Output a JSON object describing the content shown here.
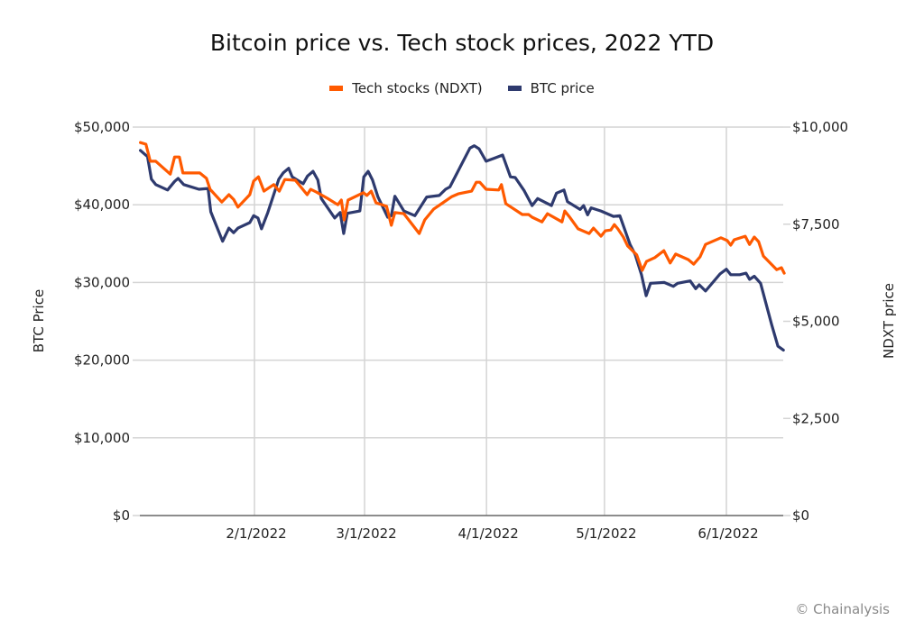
{
  "credit": "© Chainalysis",
  "colors": {
    "tech": "#FF5A00",
    "btc": "#2E3A6E",
    "grid": "#D4D4D4",
    "axis": "#666666"
  },
  "chart_data": {
    "type": "line",
    "title": "Bitcoin price vs. Tech stock prices, 2022 YTD",
    "xlabel": "",
    "ylabel": "BTC Price",
    "y2label": "NDXT price",
    "legend": {
      "placement": "top-center",
      "entries": [
        "Tech stocks (NDXT)",
        "BTC price"
      ]
    },
    "x_ticks": [
      "2/1/2022",
      "3/1/2022",
      "4/1/2022",
      "5/1/2022",
      "6/1/2022"
    ],
    "x_tick_days": [
      31,
      59,
      90,
      120,
      151
    ],
    "x_range_days": [
      2,
      165.5
    ],
    "y_ticks": [
      "$0",
      "$10,000",
      "$20,000",
      "$30,000",
      "$40,000",
      "$50,000"
    ],
    "ylim": [
      0,
      50000
    ],
    "y2_ticks": [
      "$0",
      "$2,500",
      "$5,000",
      "$7,500",
      "$10,000"
    ],
    "y2lim": [
      0,
      10000
    ],
    "grid": true,
    "x_unit": "day of year 2022 (0 = Jan 1)",
    "series": [
      {
        "name": "Tech stocks (NDXT)",
        "axis": "right",
        "color": "#FF5A00",
        "points": [
          [
            2,
            9600
          ],
          [
            3.4,
            9560
          ],
          [
            4.5,
            9120
          ],
          [
            5.9,
            9120
          ],
          [
            9.6,
            8790
          ],
          [
            10.7,
            9230
          ],
          [
            11.9,
            9230
          ],
          [
            12.8,
            8820
          ],
          [
            17.1,
            8820
          ],
          [
            18.8,
            8680
          ],
          [
            19.7,
            8400
          ],
          [
            22.7,
            8070
          ],
          [
            24.5,
            8260
          ],
          [
            25.7,
            8140
          ],
          [
            26.8,
            7940
          ],
          [
            29.8,
            8260
          ],
          [
            30.8,
            8610
          ],
          [
            32,
            8720
          ],
          [
            33.4,
            8350
          ],
          [
            35.9,
            8520
          ],
          [
            37.3,
            8350
          ],
          [
            38.7,
            8650
          ],
          [
            41.4,
            8630
          ],
          [
            44.4,
            8260
          ],
          [
            45.3,
            8400
          ],
          [
            46.7,
            8330
          ],
          [
            49.5,
            8170
          ],
          [
            52.2,
            8000
          ],
          [
            53.1,
            8120
          ],
          [
            53.8,
            7610
          ],
          [
            54.8,
            8120
          ],
          [
            58.7,
            8310
          ],
          [
            59.6,
            8240
          ],
          [
            60.7,
            8350
          ],
          [
            61.9,
            8050
          ],
          [
            64.6,
            7960
          ],
          [
            65.8,
            7470
          ],
          [
            66.7,
            7800
          ],
          [
            69,
            7770
          ],
          [
            71.3,
            7470
          ],
          [
            72.9,
            7260
          ],
          [
            74.3,
            7610
          ],
          [
            76.6,
            7890
          ],
          [
            78.9,
            8050
          ],
          [
            81.2,
            8210
          ],
          [
            82.8,
            8280
          ],
          [
            86.2,
            8350
          ],
          [
            87.4,
            8580
          ],
          [
            88.3,
            8580
          ],
          [
            89.9,
            8400
          ],
          [
            93.1,
            8380
          ],
          [
            93.8,
            8520
          ],
          [
            94.9,
            8030
          ],
          [
            99.1,
            7750
          ],
          [
            100.7,
            7750
          ],
          [
            101.6,
            7680
          ],
          [
            104.1,
            7560
          ],
          [
            105.5,
            7770
          ],
          [
            109.2,
            7560
          ],
          [
            109.9,
            7840
          ],
          [
            111,
            7700
          ],
          [
            113.3,
            7380
          ],
          [
            116.1,
            7260
          ],
          [
            117.2,
            7400
          ],
          [
            119.1,
            7190
          ],
          [
            120.2,
            7330
          ],
          [
            121.6,
            7350
          ],
          [
            122.5,
            7490
          ],
          [
            123.4,
            7380
          ],
          [
            124.8,
            7170
          ],
          [
            125.9,
            6940
          ],
          [
            128.2,
            6710
          ],
          [
            129.6,
            6310
          ],
          [
            130.7,
            6540
          ],
          [
            132.8,
            6640
          ],
          [
            135.1,
            6820
          ],
          [
            136.7,
            6500
          ],
          [
            138.1,
            6730
          ],
          [
            141.3,
            6590
          ],
          [
            142.7,
            6470
          ],
          [
            144.3,
            6660
          ],
          [
            145.7,
            6980
          ],
          [
            149.6,
            7150
          ],
          [
            151.2,
            7080
          ],
          [
            152.1,
            6960
          ],
          [
            153,
            7100
          ],
          [
            155.8,
            7190
          ],
          [
            156.9,
            6980
          ],
          [
            158.1,
            7170
          ],
          [
            159.2,
            7050
          ],
          [
            160.4,
            6680
          ],
          [
            163.8,
            6330
          ],
          [
            165,
            6380
          ],
          [
            165.7,
            6240
          ]
        ]
      },
      {
        "name": "BTC price",
        "axis": "left",
        "color": "#2E3A6E",
        "points": [
          [
            2,
            47000
          ],
          [
            3.8,
            46200
          ],
          [
            4.8,
            43300
          ],
          [
            5.9,
            42600
          ],
          [
            8.9,
            41900
          ],
          [
            10.7,
            43000
          ],
          [
            11.6,
            43400
          ],
          [
            13,
            42600
          ],
          [
            16.9,
            42000
          ],
          [
            19.2,
            42100
          ],
          [
            19.9,
            39100
          ],
          [
            22.9,
            35300
          ],
          [
            24.5,
            37000
          ],
          [
            25.7,
            36400
          ],
          [
            26.8,
            37000
          ],
          [
            29.8,
            37700
          ],
          [
            30.8,
            38600
          ],
          [
            31.9,
            38300
          ],
          [
            32.8,
            36900
          ],
          [
            34.4,
            39000
          ],
          [
            37.2,
            43300
          ],
          [
            38.3,
            44100
          ],
          [
            39.7,
            44700
          ],
          [
            40.6,
            43600
          ],
          [
            43.4,
            42700
          ],
          [
            44.5,
            43700
          ],
          [
            45.9,
            44300
          ],
          [
            47.1,
            43200
          ],
          [
            48,
            40800
          ],
          [
            51.4,
            38300
          ],
          [
            52.8,
            39000
          ],
          [
            53.7,
            36300
          ],
          [
            54.6,
            38900
          ],
          [
            57.8,
            39200
          ],
          [
            58.8,
            43600
          ],
          [
            59.9,
            44300
          ],
          [
            61,
            43200
          ],
          [
            62.4,
            41000
          ],
          [
            64.9,
            38400
          ],
          [
            65.8,
            38600
          ],
          [
            66.7,
            41100
          ],
          [
            69,
            39200
          ],
          [
            71.8,
            38600
          ],
          [
            74.8,
            41000
          ],
          [
            78,
            41200
          ],
          [
            79.6,
            42000
          ],
          [
            80.7,
            42300
          ],
          [
            85.8,
            47300
          ],
          [
            86.9,
            47600
          ],
          [
            88.1,
            47200
          ],
          [
            89.9,
            45600
          ],
          [
            92,
            46000
          ],
          [
            94.1,
            46400
          ],
          [
            96.1,
            43600
          ],
          [
            97.3,
            43500
          ],
          [
            99.6,
            41800
          ],
          [
            101.6,
            39900
          ],
          [
            103,
            40800
          ],
          [
            106.5,
            39900
          ],
          [
            107.8,
            41500
          ],
          [
            109.7,
            41900
          ],
          [
            110.6,
            40400
          ],
          [
            113.8,
            39400
          ],
          [
            114.7,
            39900
          ],
          [
            115.7,
            38700
          ],
          [
            116.6,
            39600
          ],
          [
            119.1,
            39200
          ],
          [
            122.3,
            38500
          ],
          [
            123.9,
            38600
          ],
          [
            126.5,
            34900
          ],
          [
            127.8,
            33600
          ],
          [
            129.4,
            31000
          ],
          [
            130.6,
            28300
          ],
          [
            131.7,
            29900
          ],
          [
            135.2,
            30000
          ],
          [
            137.5,
            29500
          ],
          [
            138.6,
            29900
          ],
          [
            141.8,
            30200
          ],
          [
            143.2,
            29200
          ],
          [
            144.1,
            29700
          ],
          [
            145.7,
            28900
          ],
          [
            149.4,
            31100
          ],
          [
            151,
            31700
          ],
          [
            152.1,
            31000
          ],
          [
            154.4,
            31000
          ],
          [
            156,
            31200
          ],
          [
            156.9,
            30400
          ],
          [
            158.1,
            30800
          ],
          [
            159.7,
            29900
          ],
          [
            162.5,
            24600
          ],
          [
            164.1,
            21800
          ],
          [
            165.5,
            21300
          ]
        ]
      }
    ]
  }
}
